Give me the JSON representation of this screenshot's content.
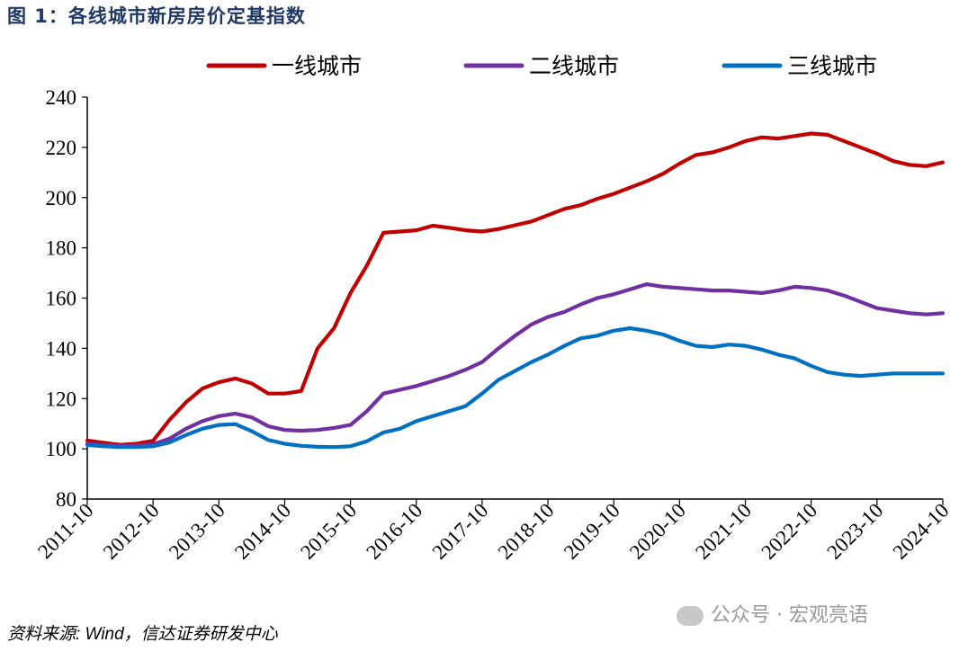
{
  "figure": {
    "title": "图 1：各线城市新房房价定基指数",
    "source": "资料来源: Wind，信达证券研发中心",
    "watermark": "公众号 · 宏观亮语"
  },
  "chart_data": {
    "type": "line",
    "title": "",
    "xlabel": "",
    "ylabel": "",
    "ylim": [
      80,
      240
    ],
    "yticks": [
      80,
      100,
      120,
      140,
      160,
      180,
      200,
      220,
      240
    ],
    "grid": false,
    "legend_position": "top",
    "xtick_labels": [
      "2011-10",
      "2012-10",
      "2013-10",
      "2014-10",
      "2015-10",
      "2016-10",
      "2017-10",
      "2018-10",
      "2019-10",
      "2020-10",
      "2021-10",
      "2022-10",
      "2023-10",
      "2024-10"
    ],
    "xlim": [
      "2011-10",
      "2024-10"
    ],
    "series": [
      {
        "name": "一线城市",
        "color": "#c00000",
        "x": [
          "2011-10",
          "2012-01",
          "2012-04",
          "2012-07",
          "2012-10",
          "2013-01",
          "2013-04",
          "2013-07",
          "2013-10",
          "2014-01",
          "2014-04",
          "2014-07",
          "2014-10",
          "2015-01",
          "2015-04",
          "2015-07",
          "2015-10",
          "2016-01",
          "2016-04",
          "2016-07",
          "2016-10",
          "2017-01",
          "2017-04",
          "2017-07",
          "2017-10",
          "2018-01",
          "2018-04",
          "2018-07",
          "2018-10",
          "2019-01",
          "2019-04",
          "2019-07",
          "2019-10",
          "2020-01",
          "2020-04",
          "2020-07",
          "2020-10",
          "2021-01",
          "2021-04",
          "2021-07",
          "2021-10",
          "2022-01",
          "2022-04",
          "2022-07",
          "2022-10",
          "2023-01",
          "2023-04",
          "2023-07",
          "2023-10",
          "2024-01",
          "2024-04",
          "2024-07",
          "2024-10"
        ],
        "values": [
          103.3,
          102.4,
          101.6,
          102.0,
          103.2,
          111.5,
          118.5,
          124.0,
          126.5,
          128.0,
          126.0,
          122.0,
          122.0,
          123.0,
          140.0,
          148.0,
          162.0,
          173.0,
          186.0,
          186.5,
          187.0,
          188.8,
          188.0,
          187.0,
          186.5,
          187.5,
          189.0,
          190.5,
          193.0,
          195.5,
          197.0,
          199.5,
          201.5,
          204.0,
          206.5,
          209.5,
          213.5,
          217.0,
          218.0,
          220.0,
          222.5,
          224.0,
          223.5,
          224.5,
          225.5,
          225.0,
          222.5,
          220.0,
          217.5,
          214.5,
          213.0,
          212.5,
          214.0
        ]
      },
      {
        "name": "二线城市",
        "color": "#7030a0",
        "x": [
          "2011-10",
          "2012-01",
          "2012-04",
          "2012-07",
          "2012-10",
          "2013-01",
          "2013-04",
          "2013-07",
          "2013-10",
          "2014-01",
          "2014-04",
          "2014-07",
          "2014-10",
          "2015-01",
          "2015-04",
          "2015-07",
          "2015-10",
          "2016-01",
          "2016-04",
          "2016-07",
          "2016-10",
          "2017-01",
          "2017-04",
          "2017-07",
          "2017-10",
          "2018-01",
          "2018-04",
          "2018-07",
          "2018-10",
          "2019-01",
          "2019-04",
          "2019-07",
          "2019-10",
          "2020-01",
          "2020-04",
          "2020-07",
          "2020-10",
          "2021-01",
          "2021-04",
          "2021-07",
          "2021-10",
          "2022-01",
          "2022-04",
          "2022-07",
          "2022-10",
          "2023-01",
          "2023-04",
          "2023-07",
          "2023-10",
          "2024-01",
          "2024-04",
          "2024-07",
          "2024-10"
        ],
        "values": [
          102.0,
          101.5,
          101.2,
          101.3,
          101.8,
          104.0,
          108.0,
          111.0,
          113.0,
          114.0,
          112.5,
          109.0,
          107.5,
          107.2,
          107.5,
          108.3,
          109.5,
          115.0,
          122.0,
          123.5,
          125.0,
          127.0,
          129.0,
          131.5,
          134.5,
          140.0,
          145.0,
          149.5,
          152.5,
          154.5,
          157.5,
          160.0,
          161.5,
          163.5,
          165.5,
          164.5,
          164.0,
          163.5,
          163.0,
          163.0,
          162.5,
          162.0,
          163.0,
          164.5,
          164.0,
          163.0,
          161.0,
          158.5,
          156.0,
          155.0,
          154.0,
          153.5,
          154.0
        ]
      },
      {
        "name": "三线城市",
        "color": "#0070c0",
        "x": [
          "2011-10",
          "2012-01",
          "2012-04",
          "2012-07",
          "2012-10",
          "2013-01",
          "2013-04",
          "2013-07",
          "2013-10",
          "2014-01",
          "2014-04",
          "2014-07",
          "2014-10",
          "2015-01",
          "2015-04",
          "2015-07",
          "2015-10",
          "2016-01",
          "2016-04",
          "2016-07",
          "2016-10",
          "2017-01",
          "2017-04",
          "2017-07",
          "2017-10",
          "2018-01",
          "2018-04",
          "2018-07",
          "2018-10",
          "2019-01",
          "2019-04",
          "2019-07",
          "2019-10",
          "2020-01",
          "2020-04",
          "2020-07",
          "2020-10",
          "2021-01",
          "2021-04",
          "2021-07",
          "2021-10",
          "2022-01",
          "2022-04",
          "2022-07",
          "2022-10",
          "2023-01",
          "2023-04",
          "2023-07",
          "2023-10",
          "2024-01",
          "2024-04",
          "2024-07",
          "2024-10"
        ],
        "values": [
          101.5,
          101.0,
          100.7,
          100.7,
          101.0,
          102.5,
          105.5,
          108.0,
          109.5,
          109.8,
          107.0,
          103.5,
          102.0,
          101.2,
          100.8,
          100.7,
          101.0,
          103.0,
          106.5,
          108.0,
          111.0,
          113.0,
          115.0,
          117.0,
          122.0,
          127.5,
          131.0,
          134.5,
          137.5,
          141.0,
          144.0,
          145.0,
          147.0,
          148.0,
          147.0,
          145.5,
          143.0,
          141.0,
          140.5,
          141.5,
          141.0,
          139.5,
          137.5,
          136.0,
          133.0,
          130.5,
          129.5,
          129.0,
          129.5,
          130.0,
          130.0,
          130.0,
          130.0
        ]
      }
    ]
  }
}
